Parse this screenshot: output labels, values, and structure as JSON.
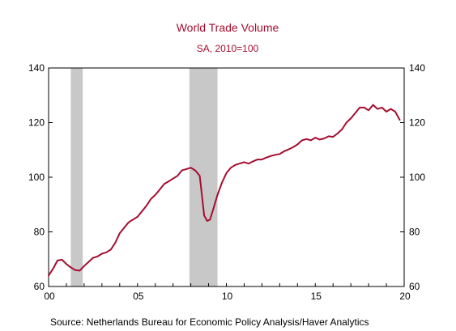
{
  "chart_data": {
    "type": "line",
    "title": "World Trade Volume",
    "subtitle": "SA, 2010=100",
    "source": "Source:  Netherlands Bureau for Economic Policy Analysis/Haver Analytics",
    "xlim": [
      2000.0,
      2020.0
    ],
    "ylim": [
      60,
      140
    ],
    "y_ticks": [
      60,
      80,
      100,
      120,
      140
    ],
    "x_ticks": [
      {
        "value": 2000.0,
        "label": "00"
      },
      {
        "value": 2005.0,
        "label": "05"
      },
      {
        "value": 2010.0,
        "label": "10"
      },
      {
        "value": 2015.0,
        "label": "15"
      },
      {
        "value": 2020.0,
        "label": "20"
      }
    ],
    "recessions": [
      [
        2001.25,
        2001.92
      ],
      [
        2007.92,
        2009.5
      ]
    ],
    "colors": {
      "line": "#a50d2e",
      "shade": "#c8c8c8",
      "title": "#a50d2e"
    },
    "series": [
      {
        "x": [
          2000.0,
          2000.25,
          2000.5,
          2000.75,
          2001.0,
          2001.25,
          2001.5,
          2001.75,
          2002.0,
          2002.25,
          2002.5,
          2002.75,
          2003.0,
          2003.25,
          2003.5,
          2003.75,
          2004.0,
          2004.25,
          2004.5,
          2004.75,
          2005.0,
          2005.25,
          2005.5,
          2005.75,
          2006.0,
          2006.25,
          2006.5,
          2006.75,
          2007.0,
          2007.25,
          2007.5,
          2007.75,
          2008.0,
          2008.25,
          2008.5,
          2008.75,
          2008.92,
          2009.08,
          2009.25,
          2009.5,
          2009.75,
          2010.0,
          2010.25,
          2010.5,
          2010.75,
          2011.0,
          2011.25,
          2011.5,
          2011.75,
          2012.0,
          2012.25,
          2012.5,
          2012.75,
          2013.0,
          2013.25,
          2013.5,
          2013.75,
          2014.0,
          2014.25,
          2014.5,
          2014.75,
          2015.0,
          2015.25,
          2015.5,
          2015.75,
          2016.0,
          2016.25,
          2016.5,
          2016.75,
          2017.0,
          2017.25,
          2017.5,
          2017.75,
          2018.0,
          2018.25,
          2018.5,
          2018.75,
          2019.0,
          2019.25,
          2019.5,
          2019.75
        ],
        "values": [
          64.0,
          66.5,
          69.5,
          69.8,
          68.2,
          67.0,
          66.0,
          65.8,
          67.5,
          69.0,
          70.5,
          71.0,
          72.0,
          72.5,
          73.5,
          76.0,
          79.5,
          81.5,
          83.5,
          84.5,
          85.5,
          87.5,
          89.5,
          92.0,
          93.5,
          95.5,
          97.5,
          98.5,
          99.5,
          100.5,
          102.5,
          103.0,
          103.5,
          102.5,
          100.5,
          86.0,
          84.0,
          84.5,
          88.0,
          93.5,
          98.0,
          101.5,
          103.5,
          104.5,
          105.0,
          105.5,
          105.0,
          105.8,
          106.5,
          106.5,
          107.2,
          107.8,
          108.2,
          108.5,
          109.5,
          110.2,
          111.0,
          112.0,
          113.5,
          114.0,
          113.5,
          114.5,
          113.8,
          114.2,
          115.0,
          114.8,
          116.0,
          117.5,
          120.0,
          121.5,
          123.5,
          125.5,
          125.5,
          124.5,
          126.5,
          125.0,
          125.5,
          124.0,
          125.0,
          124.0,
          121.0
        ]
      }
    ]
  }
}
